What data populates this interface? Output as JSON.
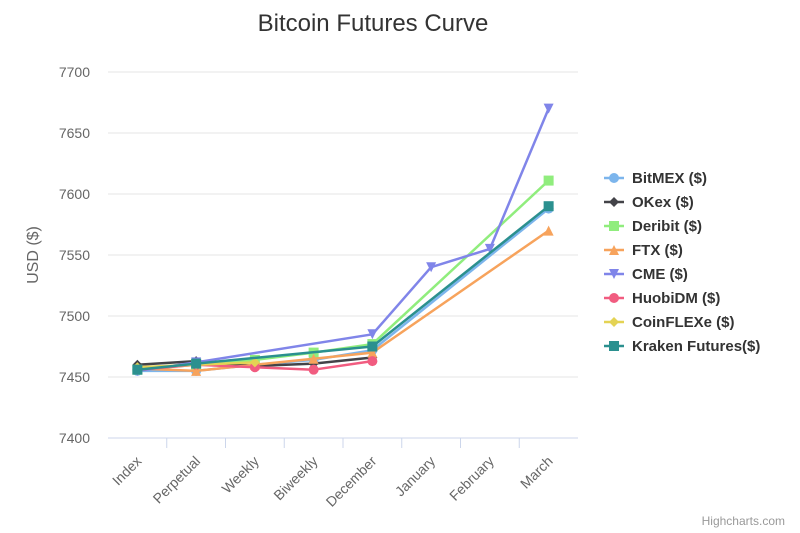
{
  "chart_data": {
    "type": "line",
    "title": "Bitcoin Futures Curve",
    "xlabel": "",
    "ylabel": "USD ($)",
    "categories": [
      "Index",
      "Perpetual",
      "Weekly",
      "Biweekly",
      "December",
      "January",
      "February",
      "March"
    ],
    "ylim": [
      7400,
      7700
    ],
    "yticks": [
      7400,
      7450,
      7500,
      7550,
      7600,
      7650,
      7700
    ],
    "legend_position": "right",
    "credits": "Highcharts.com",
    "series": [
      {
        "name": "BitMEX ($)",
        "color": "#7cb5ec",
        "marker": "circle",
        "values": [
          7455,
          7455,
          7460,
          7464,
          7472,
          null,
          null,
          7588
        ]
      },
      {
        "name": "OKex ($)",
        "color": "#434348",
        "marker": "diamond",
        "values": [
          7460,
          7463,
          7459,
          7461,
          7466,
          null,
          null,
          null
        ]
      },
      {
        "name": "Deribit ($)",
        "color": "#90ed7d",
        "marker": "square",
        "values": [
          7456,
          7460,
          7464,
          7470,
          7477,
          null,
          null,
          7611
        ]
      },
      {
        "name": "FTX ($)",
        "color": "#f7a35c",
        "marker": "triangle",
        "values": [
          7457,
          7455,
          7460,
          7465,
          7470,
          null,
          null,
          7570
        ]
      },
      {
        "name": "CME ($)",
        "color": "#8085e9",
        "marker": "triangle-down",
        "values": [
          7455,
          7462,
          null,
          null,
          7485,
          7540,
          7555,
          7670
        ]
      },
      {
        "name": "HuobiDM ($)",
        "color": "#f15c80",
        "marker": "circle",
        "values": [
          7456,
          7460,
          7458,
          7456,
          7463,
          null,
          null,
          null
        ]
      },
      {
        "name": "CoinFLEXe ($)",
        "color": "#e4d354",
        "marker": "diamond",
        "values": [
          7458,
          7460,
          7462,
          null,
          null,
          null,
          null,
          null
        ]
      },
      {
        "name": "Kraken Futures($)",
        "color": "#2b908f",
        "marker": "square",
        "values": [
          7456,
          7461,
          null,
          null,
          7475,
          null,
          null,
          7590
        ]
      }
    ]
  }
}
